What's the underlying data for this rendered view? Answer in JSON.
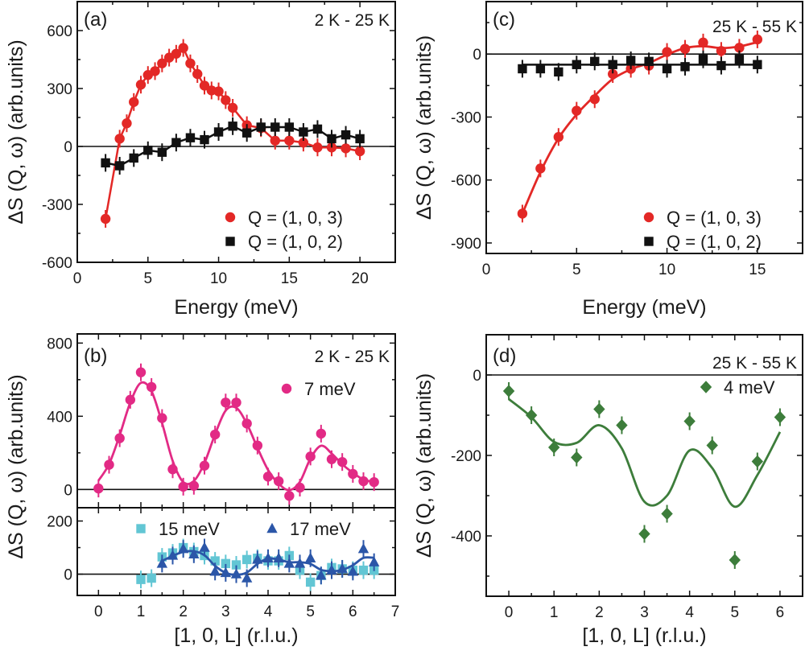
{
  "colors": {
    "red": "#e32826",
    "black": "#111111",
    "pink": "#e22a85",
    "cyan": "#62c6d4",
    "blue": "#2b56a8",
    "green": "#3d7d3b"
  },
  "chart_data": [
    {
      "id": "a",
      "type": "scatter",
      "panel_label": "(a)",
      "annotation": "2 K - 25 K",
      "xlabel": "Energy (meV)",
      "ylabel": "ΔS (Q, ω) (arb.units)",
      "xlim": [
        0,
        22.5
      ],
      "ylim": [
        -600,
        750
      ],
      "xticks": [
        0,
        5,
        10,
        15,
        20
      ],
      "yticks": [
        -600,
        -300,
        0,
        300,
        600
      ],
      "legend_position": "bottom-right",
      "series": [
        {
          "name": "Q = (1, 0, 3)",
          "color": "red",
          "marker": "circle",
          "line": "connect",
          "x": [
            2,
            3,
            3.5,
            4,
            4.5,
            5,
            5.5,
            6,
            6.5,
            7,
            7.5,
            8,
            8.5,
            9,
            9.5,
            10,
            10.5,
            11,
            12,
            13,
            14,
            15,
            16,
            17,
            18,
            19,
            20
          ],
          "y": [
            -375,
            40,
            120,
            230,
            320,
            370,
            390,
            430,
            460,
            480,
            510,
            430,
            375,
            315,
            290,
            285,
            240,
            200,
            110,
            95,
            30,
            30,
            20,
            -5,
            -5,
            -10,
            -25
          ]
        },
        {
          "name": "Q = (1, 0, 2)",
          "color": "black",
          "marker": "square",
          "line": "connect",
          "x": [
            2,
            3,
            4,
            5,
            6,
            7,
            8,
            9,
            10,
            11,
            12,
            13,
            14,
            15,
            16,
            17,
            18,
            19,
            20
          ],
          "y": [
            -85,
            -100,
            -60,
            -20,
            -30,
            20,
            45,
            35,
            75,
            105,
            70,
            100,
            100,
            100,
            75,
            90,
            40,
            60,
            40
          ]
        }
      ]
    },
    {
      "id": "c",
      "type": "scatter",
      "panel_label": "(c)",
      "annotation": "25 K - 55 K",
      "xlabel": "Energy (meV)",
      "ylabel": "ΔS (Q, ω) (arb.units)",
      "xlim": [
        0,
        17.5
      ],
      "ylim": [
        -950,
        250
      ],
      "xticks": [
        0,
        5,
        10,
        15
      ],
      "yticks": [
        -900,
        -600,
        -300,
        0
      ],
      "legend_position": "bottom-right",
      "series": [
        {
          "name": "Q = (1, 0, 3)",
          "color": "red",
          "marker": "circle",
          "line": "fit",
          "x": [
            2,
            3,
            4,
            5,
            6,
            7,
            8,
            9,
            10,
            11,
            12,
            13,
            14,
            15
          ],
          "y": [
            -760,
            -545,
            -395,
            -270,
            -215,
            -95,
            -70,
            -55,
            10,
            25,
            55,
            15,
            30,
            70
          ]
        },
        {
          "name": "Q = (1, 0, 2)",
          "color": "black",
          "marker": "square",
          "line": "flat",
          "x": [
            2,
            3,
            4,
            5,
            6,
            7,
            8,
            9,
            10,
            11,
            12,
            13,
            14,
            15
          ],
          "y": [
            -70,
            -70,
            -85,
            -50,
            -35,
            -50,
            -30,
            -35,
            -70,
            -60,
            -25,
            -55,
            -25,
            -50
          ]
        }
      ]
    },
    {
      "id": "b_top",
      "type": "scatter",
      "panel_label": "(b)",
      "annotation": "2 K - 25 K",
      "xlabel": "",
      "ylabel": "ΔS (Q, ω) (arb.units)",
      "xlim": [
        -0.5,
        7
      ],
      "ylim": [
        -100,
        850
      ],
      "xticks": [
        0,
        1,
        2,
        3,
        4,
        5,
        6,
        7
      ],
      "yticks": [
        0,
        400,
        800
      ],
      "legend_position": "top-right",
      "series": [
        {
          "name": "7 meV",
          "color": "pink",
          "marker": "circle",
          "line": "smooth",
          "x": [
            0,
            0.25,
            0.5,
            0.75,
            1,
            1.25,
            1.5,
            1.75,
            2,
            2.25,
            2.5,
            2.75,
            3,
            3.25,
            3.5,
            3.75,
            4,
            4.25,
            4.5,
            4.75,
            5,
            5.25,
            5.5,
            5.75,
            6,
            6.25,
            6.5
          ],
          "y": [
            5,
            135,
            280,
            490,
            640,
            560,
            390,
            110,
            15,
            20,
            130,
            300,
            475,
            475,
            360,
            240,
            70,
            45,
            -35,
            10,
            180,
            305,
            165,
            150,
            85,
            45,
            40
          ]
        }
      ]
    },
    {
      "id": "b_bottom",
      "type": "scatter",
      "panel_label": "",
      "annotation": "",
      "xlabel": "[1, 0, L] (r.l.u.)",
      "ylabel": "",
      "xlim": [
        -0.5,
        7
      ],
      "ylim": [
        -80,
        250
      ],
      "xticks": [
        0,
        1,
        2,
        3,
        4,
        5,
        6,
        7
      ],
      "yticks": [
        0,
        200
      ],
      "legend_position": "top",
      "series": [
        {
          "name": "15 meV",
          "color": "cyan",
          "marker": "square",
          "line": "none",
          "x": [
            1,
            1.25,
            1.5,
            1.75,
            2,
            2.25,
            2.5,
            2.75,
            3,
            3.25,
            3.5,
            3.75,
            4,
            4.25,
            4.5,
            4.75,
            5,
            5.25,
            5.5,
            5.75,
            6,
            6.25,
            6.5
          ],
          "y": [
            -20,
            -15,
            65,
            80,
            100,
            85,
            70,
            50,
            40,
            35,
            55,
            60,
            50,
            50,
            70,
            15,
            -30,
            -5,
            25,
            20,
            15,
            15,
            15
          ]
        },
        {
          "name": "17 meV",
          "color": "blue",
          "marker": "triangle",
          "line": "smooth",
          "x": [
            1.5,
            1.75,
            2,
            2.25,
            2.5,
            2.75,
            3,
            3.25,
            3.5,
            3.75,
            4,
            4.25,
            4.5,
            4.75,
            5,
            5.25,
            5.5,
            5.75,
            6,
            6.25,
            6.5
          ],
          "y": [
            40,
            70,
            95,
            75,
            100,
            10,
            5,
            0,
            -15,
            55,
            60,
            60,
            40,
            40,
            60,
            -5,
            15,
            20,
            10,
            95,
            45
          ]
        }
      ]
    },
    {
      "id": "d",
      "type": "scatter",
      "panel_label": "(d)",
      "annotation": "25 K - 55 K",
      "xlabel": "[1, 0, L] (r.l.u.)",
      "ylabel": "ΔS (Q, ω) (arb.units)",
      "xlim": [
        -0.5,
        6.5
      ],
      "ylim": [
        -550,
        100
      ],
      "xticks": [
        0,
        1,
        2,
        3,
        4,
        5,
        6
      ],
      "yticks": [
        -400,
        -200,
        0
      ],
      "legend_position": "top-right",
      "series": [
        {
          "name": "4 meV",
          "color": "green",
          "marker": "diamond",
          "line": "smooth",
          "x": [
            0,
            0.5,
            1,
            1.5,
            2,
            2.5,
            3,
            3.5,
            4,
            4.5,
            5,
            5.5,
            6
          ],
          "y": [
            -40,
            -100,
            -180,
            -205,
            -85,
            -125,
            -395,
            -345,
            -115,
            -175,
            -460,
            -215,
            -105
          ]
        }
      ]
    }
  ]
}
